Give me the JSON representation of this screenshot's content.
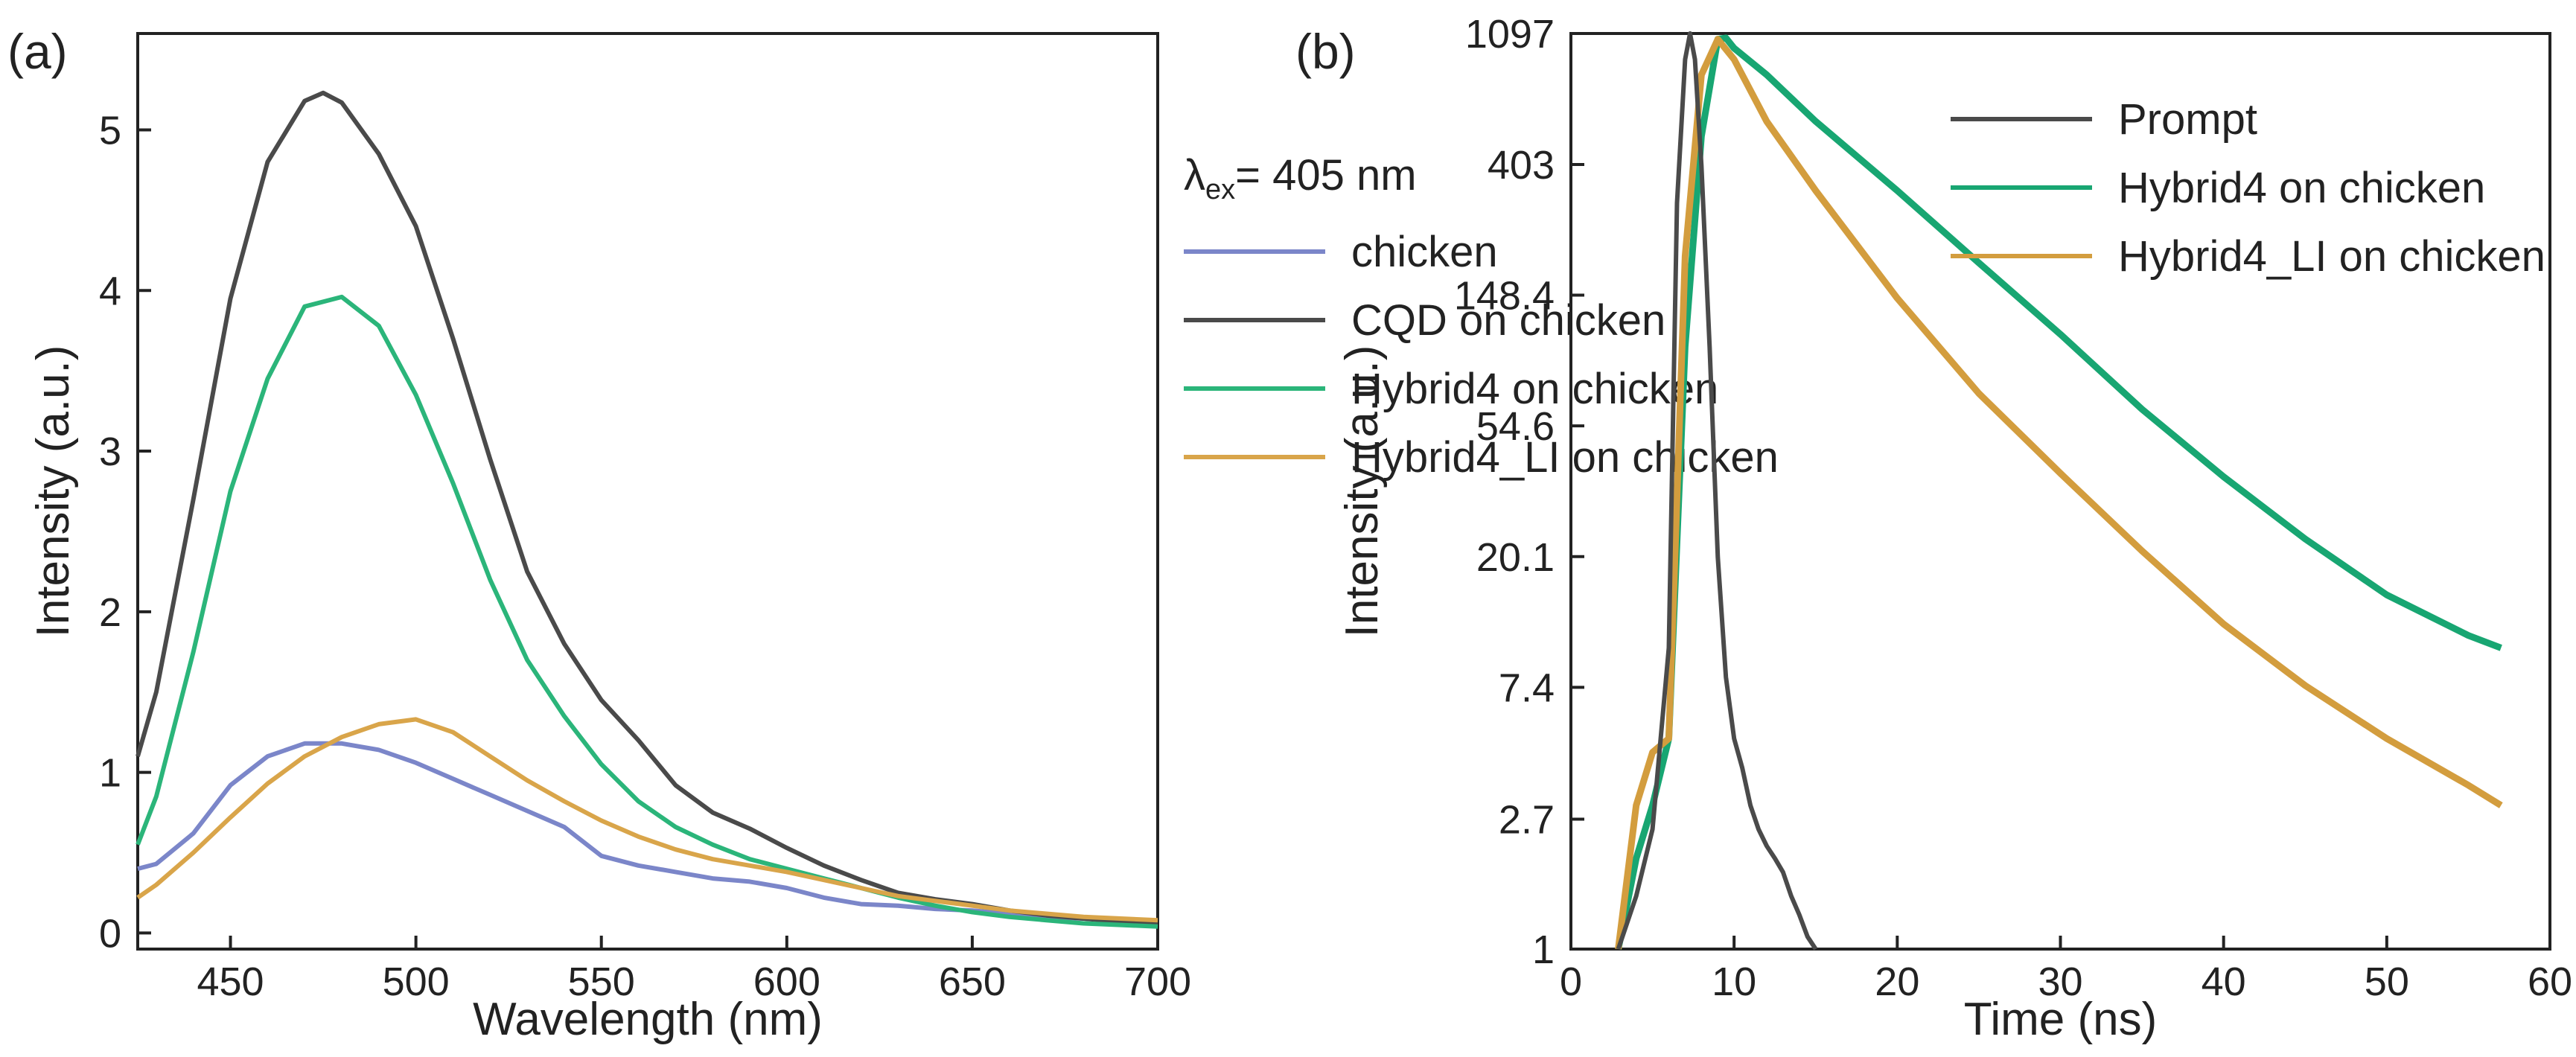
{
  "chart_data": [
    {
      "panel": "(a)",
      "type": "line",
      "xlabel": "Wavelength (nm)",
      "ylabel": "Intensity (a.u.)",
      "xlim": [
        425,
        700
      ],
      "ylim": [
        -0.1,
        5.6
      ],
      "xticks": [
        450,
        500,
        550,
        600,
        650,
        700
      ],
      "yticks": [
        0,
        1,
        2,
        3,
        4,
        5
      ],
      "annotation": {
        "symbol": "λ",
        "sub": "ex",
        "text": "= 405 nm"
      },
      "series": [
        {
          "name": "chicken",
          "color": "#7b86c9",
          "x": [
            425,
            430,
            440,
            450,
            460,
            470,
            480,
            490,
            500,
            510,
            520,
            530,
            540,
            550,
            560,
            570,
            580,
            590,
            600,
            610,
            620,
            630,
            640,
            650,
            660,
            670,
            680,
            690,
            700
          ],
          "y": [
            0.4,
            0.43,
            0.62,
            0.92,
            1.1,
            1.18,
            1.18,
            1.14,
            1.06,
            0.96,
            0.86,
            0.76,
            0.66,
            0.48,
            0.42,
            0.38,
            0.34,
            0.32,
            0.28,
            0.22,
            0.18,
            0.17,
            0.15,
            0.14,
            0.12,
            0.1,
            0.09,
            0.08,
            0.07
          ]
        },
        {
          "name": "CQD on chicken",
          "color": "#4a4a4a",
          "x": [
            425,
            430,
            440,
            450,
            460,
            470,
            475,
            480,
            490,
            500,
            510,
            520,
            530,
            540,
            550,
            560,
            570,
            580,
            590,
            600,
            610,
            620,
            630,
            640,
            650,
            660,
            670,
            680,
            690,
            700
          ],
          "y": [
            1.1,
            1.5,
            2.7,
            3.95,
            4.8,
            5.18,
            5.23,
            5.17,
            4.85,
            4.4,
            3.7,
            2.95,
            2.25,
            1.8,
            1.45,
            1.2,
            0.92,
            0.75,
            0.65,
            0.53,
            0.42,
            0.33,
            0.25,
            0.21,
            0.18,
            0.14,
            0.11,
            0.09,
            0.07,
            0.06
          ]
        },
        {
          "name": "Hybrid4 on chicken",
          "color": "#2bb57a",
          "x": [
            425,
            430,
            440,
            450,
            460,
            470,
            480,
            490,
            500,
            510,
            520,
            530,
            540,
            550,
            560,
            570,
            580,
            590,
            600,
            610,
            620,
            630,
            640,
            650,
            660,
            670,
            680,
            690,
            700
          ],
          "y": [
            0.55,
            0.85,
            1.75,
            2.75,
            3.45,
            3.9,
            3.96,
            3.78,
            3.35,
            2.8,
            2.2,
            1.7,
            1.35,
            1.05,
            0.82,
            0.66,
            0.55,
            0.46,
            0.4,
            0.34,
            0.28,
            0.22,
            0.17,
            0.13,
            0.1,
            0.08,
            0.06,
            0.05,
            0.04
          ]
        },
        {
          "name": "Hybrid4_LI on chicken",
          "color": "#d9a54a",
          "x": [
            425,
            430,
            440,
            450,
            460,
            470,
            480,
            490,
            500,
            510,
            520,
            530,
            540,
            550,
            560,
            570,
            580,
            590,
            600,
            610,
            620,
            630,
            640,
            650,
            660,
            670,
            680,
            690,
            700
          ],
          "y": [
            0.22,
            0.3,
            0.5,
            0.72,
            0.93,
            1.1,
            1.22,
            1.3,
            1.33,
            1.25,
            1.1,
            0.95,
            0.82,
            0.7,
            0.6,
            0.52,
            0.46,
            0.42,
            0.38,
            0.33,
            0.28,
            0.23,
            0.2,
            0.17,
            0.14,
            0.12,
            0.1,
            0.09,
            0.08
          ]
        }
      ]
    },
    {
      "panel": "(b)",
      "type": "line",
      "yscale": "log",
      "xlabel": "Time (ns)",
      "ylabel": "Intensity (a.u.)",
      "xlim": [
        0,
        60
      ],
      "ylim": [
        1,
        1097
      ],
      "xticks": [
        0,
        10,
        20,
        30,
        40,
        50,
        60
      ],
      "yticks": [
        1,
        2.7,
        7.4,
        20.1,
        54.6,
        148.4,
        403,
        1097
      ],
      "ytick_labels": [
        "1",
        "2.7",
        "7.4",
        "20.1",
        "54.6",
        "148.4",
        "403",
        "1097"
      ],
      "series": [
        {
          "name": "Prompt",
          "color": "#4a4a4a",
          "x": [
            2.9,
            4.0,
            5.0,
            6.0,
            6.5,
            7.0,
            7.3,
            7.6,
            8.0,
            8.5,
            9.0,
            9.5,
            10.0,
            10.5,
            11.0,
            11.5,
            12.0,
            12.5,
            13.0,
            13.5,
            14.0,
            14.5,
            15.0
          ],
          "y": [
            1.0,
            1.5,
            2.5,
            10,
            300,
            900,
            1097,
            900,
            400,
            100,
            20,
            8,
            5,
            4,
            3,
            2.5,
            2.2,
            2.0,
            1.8,
            1.5,
            1.3,
            1.1,
            1.0
          ]
        },
        {
          "name": "Hybrid4 on chicken",
          "color": "#18a672",
          "x": [
            2.9,
            4.0,
            5.0,
            6.0,
            7.0,
            8.0,
            9.0,
            9.5,
            10,
            12,
            15,
            20,
            25,
            30,
            35,
            40,
            45,
            50,
            55,
            57
          ],
          "y": [
            1.0,
            2.0,
            3.0,
            5.0,
            100,
            500,
            1050,
            1060,
            980,
            800,
            560,
            330,
            190,
            110,
            62,
            37,
            23,
            15,
            11,
            10
          ]
        },
        {
          "name": "Hybrid4_LI on chicken",
          "color": "#d39d3e",
          "x": [
            2.9,
            4.0,
            5.0,
            6.0,
            7.0,
            8.0,
            9.0,
            10,
            12,
            15,
            20,
            25,
            30,
            35,
            40,
            45,
            50,
            55,
            57
          ],
          "y": [
            1.0,
            3.0,
            4.5,
            5.0,
            200,
            800,
            1050,
            900,
            560,
            330,
            145,
            70,
            38,
            21,
            12,
            7.5,
            5,
            3.5,
            3
          ]
        }
      ]
    }
  ]
}
